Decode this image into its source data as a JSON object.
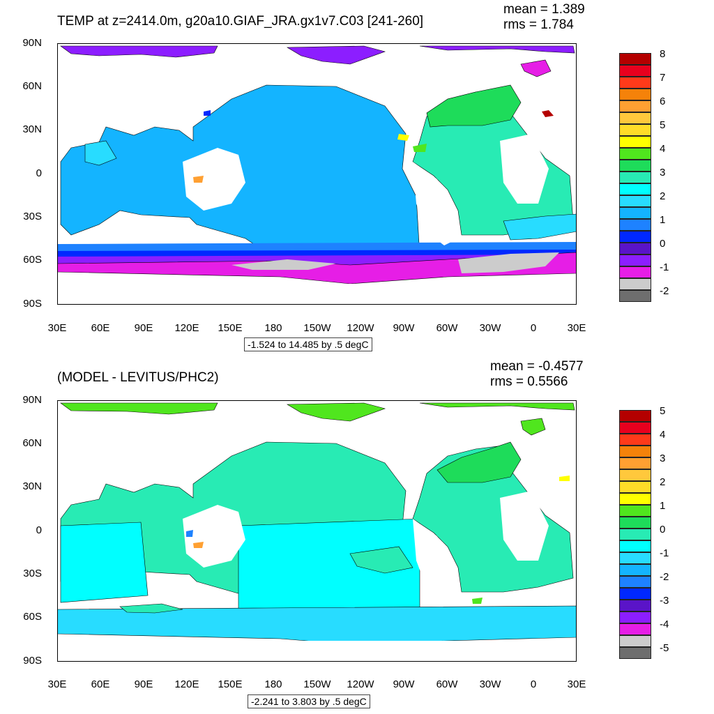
{
  "top": {
    "title": "TEMP at z=2414.0m, g20a10.GIAF_JRA.gx1v7.C03 [241-260]",
    "mean": "mean = 1.389",
    "rms": "rms = 1.784",
    "range": "-1.524 to 14.485 by .5 degC",
    "colorbar_labels": [
      "8",
      "7",
      "6",
      "5",
      "4",
      "3",
      "2",
      "1",
      "0",
      "-1",
      "-2"
    ],
    "colors": [
      "#b40000",
      "#e8001e",
      "#ff3a1a",
      "#f5820a",
      "#ffa032",
      "#ffc83c",
      "#ffdc28",
      "#ffff00",
      "#50e61e",
      "#1edc5a",
      "#28ebb4",
      "#00ffff",
      "#28dcff",
      "#14b4ff",
      "#1e82ff",
      "#0028ff",
      "#5a14c8",
      "#8c1eff",
      "#e61ee6",
      "#cccccc",
      "#6e6e6e"
    ]
  },
  "bottom": {
    "title": "(MODEL - LEVITUS/PHC2)",
    "mean": "mean = -0.4577",
    "rms": "rms = 0.5566",
    "range": "-2.241 to 3.803 by .5 degC",
    "colorbar_labels": [
      "5",
      "4",
      "3",
      "2",
      "1",
      "0",
      "-1",
      "-2",
      "-3",
      "-4",
      "-5"
    ],
    "colors": [
      "#b40000",
      "#e8001e",
      "#ff3a1a",
      "#f5820a",
      "#ffa032",
      "#ffc83c",
      "#ffdc28",
      "#ffff00",
      "#50e61e",
      "#1edc5a",
      "#28ebb4",
      "#00ffff",
      "#28dcff",
      "#14b4ff",
      "#1e82ff",
      "#0028ff",
      "#5a14c8",
      "#8c1eff",
      "#e61ee6",
      "#cccccc",
      "#6e6e6e"
    ]
  },
  "axes": {
    "lat_labels": [
      "90N",
      "60N",
      "30N",
      "0",
      "30S",
      "60S",
      "90S"
    ],
    "lon_labels": [
      "30E",
      "60E",
      "90E",
      "120E",
      "150E",
      "180",
      "150W",
      "120W",
      "90W",
      "60W",
      "30W",
      "0",
      "30E"
    ]
  }
}
